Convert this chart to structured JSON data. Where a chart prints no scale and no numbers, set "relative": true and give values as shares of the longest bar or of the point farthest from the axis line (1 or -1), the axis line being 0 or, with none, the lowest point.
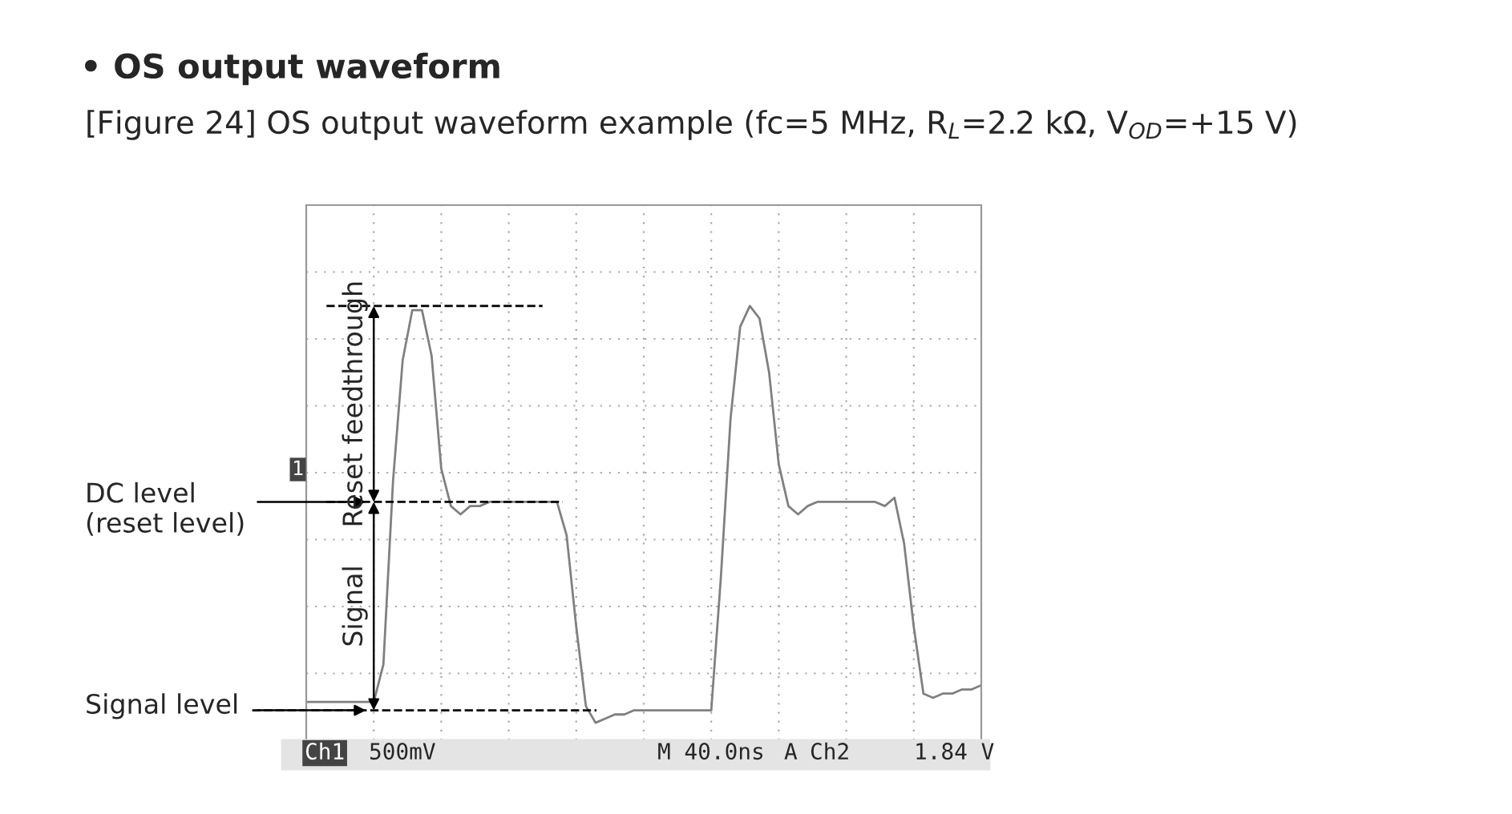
{
  "chart_data": {
    "type": "line",
    "title": "• OS output waveform",
    "subtitle": "[Figure 24] OS output waveform example (fc=5 MHz, R$_{L}$=2.2 kΩ, V$_{OD}$=+15 V)",
    "relative": true,
    "categories": [
      null,
      null,
      null,
      null,
      null,
      null,
      null,
      null,
      null,
      null,
      null,
      null,
      null,
      null,
      null,
      null,
      null,
      null,
      null,
      null,
      null,
      null,
      null,
      null,
      null,
      null,
      null,
      null,
      null,
      null,
      null,
      null,
      null,
      null,
      null,
      null,
      null,
      null,
      null,
      null,
      null,
      null,
      null,
      null,
      null,
      null,
      null,
      null,
      null,
      null,
      null,
      null,
      null,
      null,
      null,
      null,
      null,
      null,
      null,
      null,
      null,
      null,
      null,
      null,
      null,
      null,
      null,
      null,
      null,
      null,
      null
    ],
    "series": [
      {
        "color": "#808080",
        "values": [
          0.05,
          0.05,
          0.05,
          0.05,
          0.05,
          0.05,
          0.05,
          0.05,
          0.14,
          0.58,
          0.87,
          0.99,
          0.99,
          0.88,
          0.61,
          0.52,
          0.5,
          0.52,
          0.52,
          0.53,
          0.53,
          0.53,
          0.53,
          0.53,
          0.53,
          0.53,
          0.53,
          0.45,
          0.23,
          0.04,
          0,
          0.01,
          0.02,
          0.02,
          0.03,
          0.03,
          0.03,
          0.03,
          0.03,
          0.03,
          0.03,
          0.03,
          0.03,
          0.35,
          0.73,
          0.95,
          1,
          0.97,
          0.84,
          0.62,
          0.52,
          0.5,
          0.52,
          0.53,
          0.53,
          0.53,
          0.53,
          0.53,
          0.53,
          0.53,
          0.52,
          0.54,
          0.43,
          0.23,
          0.07,
          0.06,
          0.07,
          0.07,
          0.08,
          0.08,
          0.09
        ]
      }
    ],
    "ref_lines": [
      {
        "axis": "y",
        "value": 1,
        "label": null,
        "line_style": "dashed",
        "color": "#000000"
      },
      {
        "axis": "y",
        "value": 0.53,
        "label": "DC level\n(reset level)",
        "line_style": "dashed",
        "color": "#000000"
      },
      {
        "axis": "y",
        "value": 0.03,
        "label": "Signal level",
        "line_style": "dashed",
        "color": "#000000"
      }
    ],
    "annotations": [
      "Reset feedthrough",
      "Signal",
      "1",
      "Ch1",
      "500mV",
      "M 40.0ns",
      "A",
      "Ch2",
      "1.84 V"
    ],
    "grid": true,
    "legend": false,
    "line_style": "solid",
    "marker": "none"
  }
}
